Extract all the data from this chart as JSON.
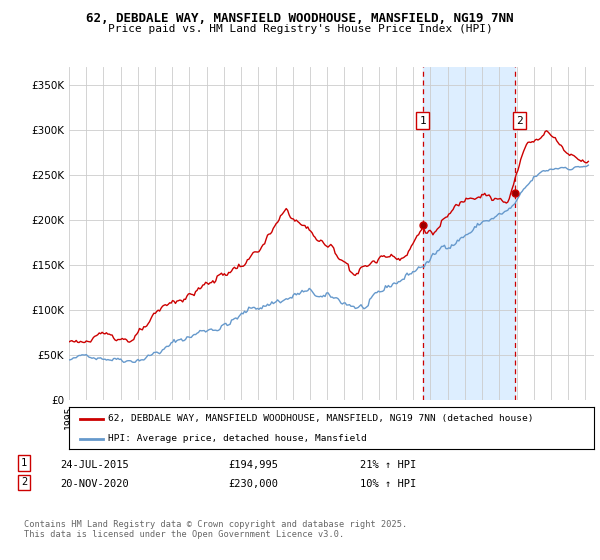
{
  "title_line1": "62, DEBDALE WAY, MANSFIELD WOODHOUSE, MANSFIELD, NG19 7NN",
  "title_line2": "Price paid vs. HM Land Registry's House Price Index (HPI)",
  "legend_label_red": "62, DEBDALE WAY, MANSFIELD WOODHOUSE, MANSFIELD, NG19 7NN (detached house)",
  "legend_label_blue": "HPI: Average price, detached house, Mansfield",
  "annotation1_label": "1",
  "annotation1_date": "24-JUL-2015",
  "annotation1_price": "£194,995",
  "annotation1_hpi": "21% ↑ HPI",
  "annotation2_label": "2",
  "annotation2_date": "20-NOV-2020",
  "annotation2_price": "£230,000",
  "annotation2_hpi": "10% ↑ HPI",
  "footnote": "Contains HM Land Registry data © Crown copyright and database right 2025.\nThis data is licensed under the Open Government Licence v3.0.",
  "red_color": "#cc0000",
  "blue_color": "#6699cc",
  "annotation_vline_color": "#cc0000",
  "shaded_region_color": "#ddeeff",
  "background_color": "#ffffff",
  "grid_color": "#cccccc",
  "ylim_min": 0,
  "ylim_max": 370000,
  "xstart_year": 1995,
  "xend_year": 2025,
  "purchase1_year": 2015.55,
  "purchase2_year": 2020.9,
  "purchase1_price": 194995,
  "purchase2_price": 230000
}
